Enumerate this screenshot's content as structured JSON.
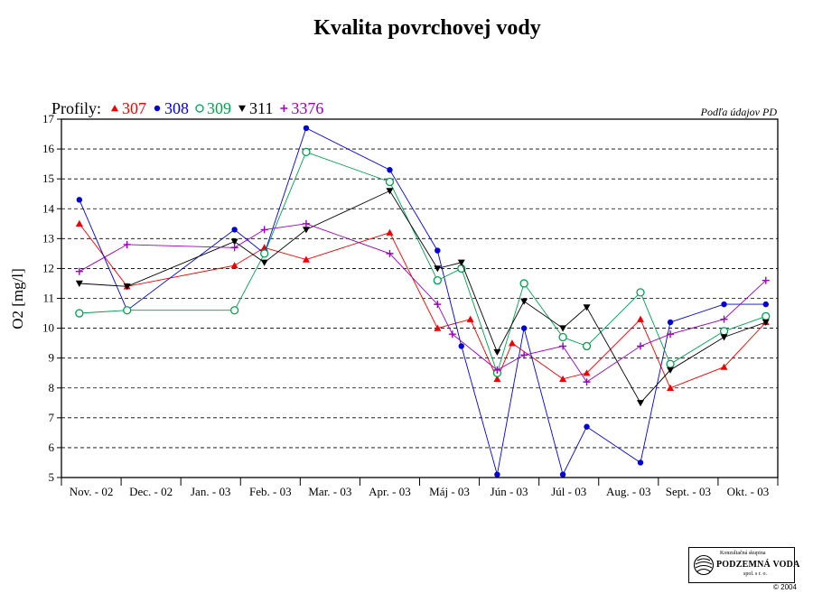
{
  "chart_data": {
    "type": "line",
    "title": "Kvalita povrchovej vody",
    "ylabel": "O2  [mg/l]",
    "xlabel": "",
    "ylim": [
      5,
      17
    ],
    "yticks": [
      5,
      6,
      7,
      8,
      9,
      10,
      11,
      12,
      13,
      14,
      15,
      16,
      17
    ],
    "grid": "horizontal dashed",
    "x_unit": "month",
    "x_range": [
      0,
      12
    ],
    "categories": [
      "Nov. - 02",
      "Dec. - 02",
      "Jan. - 03",
      "Feb. - 03",
      "Mar. - 03",
      "Apr. - 03",
      "Máj - 03",
      "Jún - 03",
      "Júl - 03",
      "Aug. - 03",
      "Sept. - 03",
      "Okt. - 03"
    ],
    "legend_title": "Profily:",
    "legend_placement": "top-left, above plot",
    "note": "Podľa údajov PD",
    "series": [
      {
        "name": "307",
        "color": "#ee0000",
        "marker": "triangle-up",
        "x": [
          0.3,
          1.1,
          2.9,
          3.4,
          4.1,
          5.5,
          6.3,
          6.85,
          7.3,
          7.55,
          8.4,
          8.8,
          9.7,
          10.2,
          11.1,
          11.8
        ],
        "y": [
          13.5,
          11.4,
          12.1,
          12.7,
          12.3,
          13.2,
          10.0,
          10.3,
          8.3,
          9.5,
          8.3,
          8.5,
          10.3,
          8.0,
          8.7,
          10.2
        ]
      },
      {
        "name": "308",
        "color": "#0000dd",
        "marker": "circle-filled",
        "x": [
          0.3,
          1.1,
          2.9,
          3.4,
          4.1,
          5.5,
          6.3,
          6.7,
          7.3,
          7.75,
          8.4,
          8.8,
          9.7,
          10.2,
          11.1,
          11.8
        ],
        "y": [
          14.3,
          10.6,
          13.3,
          12.5,
          16.7,
          15.3,
          12.6,
          9.4,
          5.1,
          10.0,
          5.1,
          6.7,
          5.5,
          10.2,
          10.8,
          10.8
        ]
      },
      {
        "name": "309",
        "color": "#00a050",
        "marker": "circle-open",
        "x": [
          0.3,
          1.1,
          2.9,
          3.4,
          4.1,
          5.5,
          6.3,
          6.7,
          7.3,
          7.75,
          8.4,
          8.8,
          9.7,
          10.2,
          11.1,
          11.8
        ],
        "y": [
          10.5,
          10.6,
          10.6,
          12.5,
          15.9,
          14.9,
          11.6,
          12.0,
          8.5,
          11.5,
          9.7,
          9.4,
          11.2,
          8.8,
          9.9,
          10.4
        ]
      },
      {
        "name": "311",
        "color": "#000000",
        "marker": "triangle-down",
        "x": [
          0.3,
          1.1,
          2.9,
          3.4,
          4.1,
          5.5,
          6.3,
          6.7,
          7.3,
          7.75,
          8.4,
          8.8,
          9.7,
          10.2,
          11.1,
          11.8
        ],
        "y": [
          11.5,
          11.4,
          12.9,
          12.2,
          13.3,
          14.6,
          12.0,
          12.2,
          9.2,
          10.9,
          10.0,
          10.7,
          7.5,
          8.6,
          9.7,
          10.2
        ]
      },
      {
        "name": "3376",
        "color": "#9900bb",
        "marker": "plus",
        "x": [
          0.3,
          1.1,
          2.9,
          3.4,
          4.1,
          5.5,
          6.3,
          6.55,
          7.3,
          7.75,
          8.4,
          8.8,
          9.7,
          10.2,
          11.1,
          11.8
        ],
        "y": [
          11.9,
          12.8,
          12.7,
          13.3,
          13.5,
          12.5,
          10.8,
          9.8,
          8.6,
          9.1,
          9.4,
          8.2,
          9.4,
          9.8,
          10.3,
          11.6
        ]
      }
    ]
  },
  "logo": {
    "line1": "Konzultačná skupina",
    "name": "PODZEMNÁ VODA",
    "line3": "spol. s r. o."
  },
  "copyright": "© 2004"
}
